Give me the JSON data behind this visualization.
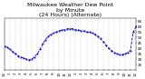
{
  "title": "Milwaukee Weather Dew Point\nby Minute\n(24 Hours) (Alternate)",
  "title_fontsize": 4.5,
  "line_color": "#0000cc",
  "bg_color": "#ffffff",
  "grid_color": "#aaaaaa",
  "ylim": [
    20,
    68
  ],
  "xlim": [
    0,
    1439
  ],
  "ylabel_right": true,
  "yticks": [
    25,
    30,
    35,
    40,
    45,
    50,
    55,
    60,
    65
  ],
  "x_data": [
    0,
    30,
    60,
    90,
    120,
    150,
    180,
    210,
    240,
    270,
    300,
    330,
    360,
    390,
    420,
    450,
    480,
    510,
    540,
    570,
    600,
    630,
    660,
    690,
    720,
    750,
    780,
    810,
    840,
    870,
    900,
    930,
    960,
    990,
    1020,
    1050,
    1080,
    1110,
    1140,
    1170,
    1200,
    1230,
    1260,
    1290,
    1320,
    1350,
    1380,
    1410,
    1439
  ],
  "y_data": [
    42,
    41,
    39,
    37,
    35,
    33,
    32,
    31,
    30,
    29,
    30,
    32,
    35,
    39,
    44,
    48,
    51,
    53,
    54,
    55,
    56,
    57,
    57,
    58,
    58,
    58,
    57,
    57,
    56,
    56,
    55,
    55,
    54,
    53,
    51,
    49,
    46,
    43,
    40,
    38,
    36,
    35,
    34,
    34,
    35,
    36,
    38,
    55,
    60
  ],
  "xtick_positions": [
    0,
    60,
    120,
    180,
    240,
    300,
    360,
    420,
    480,
    540,
    600,
    660,
    720,
    780,
    840,
    900,
    960,
    1020,
    1080,
    1140,
    1200,
    1260,
    1320,
    1380,
    1439
  ],
  "xtick_labels": [
    "12",
    "1",
    "2",
    "3",
    "4",
    "5",
    "6",
    "7",
    "8",
    "9",
    "10",
    "11",
    "12",
    "1",
    "2",
    "3",
    "4",
    "5",
    "6",
    "7",
    "8",
    "9",
    "10",
    "11",
    "12"
  ],
  "xlabel_fontsize": 3.0,
  "ylabel_fontsize": 3.0
}
